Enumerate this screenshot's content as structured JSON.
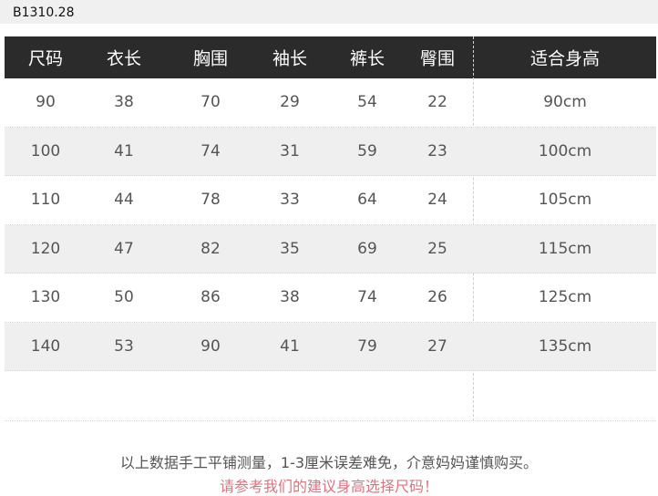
{
  "product_code": "B1310.28",
  "headers": [
    "尺码",
    "衣长",
    "胸围",
    "袖长",
    "裤长",
    "臀围",
    "适合身高"
  ],
  "rows": [
    [
      "90",
      "38",
      "70",
      "29",
      "54",
      "22",
      "90cm"
    ],
    [
      "100",
      "41",
      "74",
      "31",
      "59",
      "23",
      "100cm"
    ],
    [
      "110",
      "44",
      "78",
      "33",
      "64",
      "24",
      "105cm"
    ],
    [
      "120",
      "47",
      "82",
      "35",
      "69",
      "25",
      "115cm"
    ],
    [
      "130",
      "50",
      "86",
      "38",
      "74",
      "26",
      "125cm"
    ],
    [
      "140",
      "53",
      "90",
      "41",
      "79",
      "27",
      "135cm"
    ]
  ],
  "notes": {
    "disclaimer": "以上数据手工平铺测量，1-3厘米误差难免，介意妈妈谨慎购买。",
    "advice": "请参考我们的建议身高选择尺码！"
  },
  "colors": {
    "header_bg": "#2b2b2b",
    "advice_text": "#d9757f",
    "alt_row": "#efefef"
  }
}
